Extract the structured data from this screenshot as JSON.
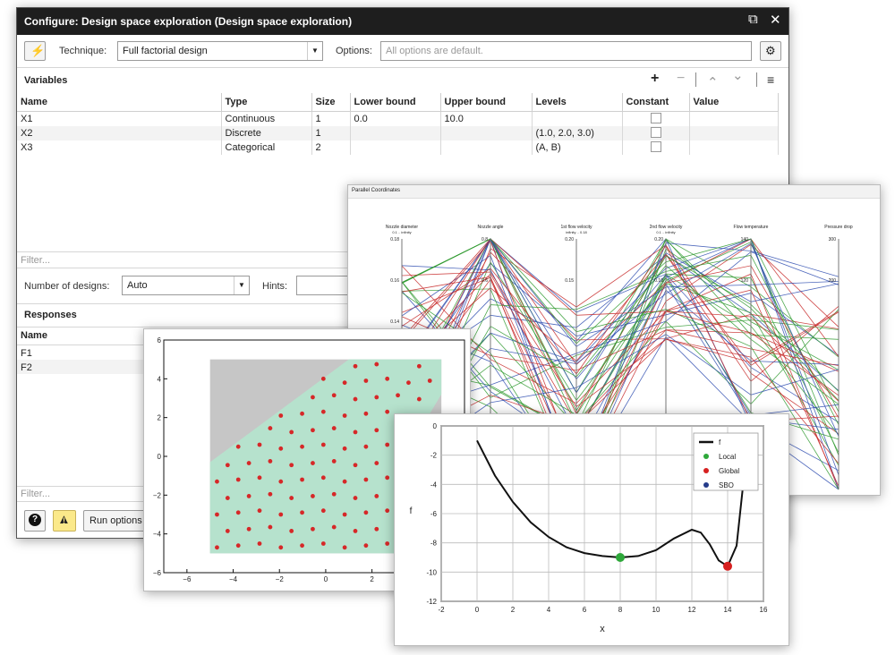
{
  "dialog": {
    "title": "Configure: Design space exploration (Design space exploration)",
    "controls": {
      "restore": "⧉",
      "close": "✕"
    },
    "technique_label": "Technique:",
    "technique_value": "Full factorial design",
    "options_label": "Options:",
    "options_placeholder": "All options are default.",
    "variables_title": "Variables",
    "toolbar": {
      "add": "+",
      "remove": "−",
      "up": "⌃",
      "down": "⌄",
      "menu": "≡"
    },
    "variables_columns": [
      "Name",
      "Type",
      "Size",
      "Lower bound",
      "Upper bound",
      "Levels",
      "Constant",
      "Value"
    ],
    "variables_rows": [
      {
        "name": "X1",
        "type": "Continuous",
        "size": "1",
        "lower": "0.0",
        "upper": "10.0",
        "levels": ""
      },
      {
        "name": "X2",
        "type": "Discrete",
        "size": "1",
        "lower": "",
        "upper": "",
        "levels": "(1.0, 2.0, 3.0)"
      },
      {
        "name": "X3",
        "type": "Categorical",
        "size": "2",
        "lower": "",
        "upper": "",
        "levels": "(A, B)"
      }
    ],
    "filter_placeholder": "Filter...",
    "number_of_designs_label": "Number of designs:",
    "number_of_designs_value": "Auto",
    "hints_label": "Hints:",
    "responses_title": "Responses",
    "responses_columns": [
      "Name"
    ],
    "responses_rows": [
      "F1",
      "F2"
    ],
    "filter2_placeholder": "Filter...",
    "help_button": "?",
    "warning_button": "!",
    "run_options_button": "Run options"
  },
  "parallel_chart": {
    "title": "Parallel Coordinates",
    "axes": [
      "Nozzle diameter",
      "Nozzle angle",
      "1st flow velocity",
      "2nd flow velocity",
      "Flow temperature",
      "Pressure drop"
    ],
    "subtitles": [
      "0.1 .. infinity",
      "",
      "infinity .. 0.18",
      "0.1 .. infinity",
      "",
      ""
    ],
    "tick_labels": [
      [
        "0.18",
        "0.16",
        "0.14"
      ],
      [
        "0.8",
        "0.6"
      ],
      [
        "0.20",
        "0.15"
      ],
      [
        "0.20",
        "0.10"
      ],
      [
        "140",
        "120"
      ],
      [
        "300",
        "200"
      ]
    ],
    "line_colors": [
      "#2f4db0",
      "#2f9a2f",
      "#c72828"
    ]
  },
  "scatter_chart": {
    "chart_data": {
      "type": "scatter",
      "xlim": [
        -7,
        6
      ],
      "ylim": [
        -6,
        6
      ],
      "xticks": [
        "−6",
        "−4",
        "−2",
        "0",
        "2",
        "4"
      ],
      "yticks": [
        "6",
        "4",
        "2",
        "0",
        "−2",
        "−4",
        "−6"
      ],
      "region_box": {
        "x": [
          -5,
          5
        ],
        "y": [
          -5,
          5
        ]
      },
      "feasible_polygon": [
        [
          -5,
          -5
        ],
        [
          4.6,
          -5
        ],
        [
          4.6,
          -2
        ],
        [
          3.8,
          -0.6
        ],
        [
          3.6,
          0.6
        ],
        [
          4.4,
          2
        ],
        [
          5,
          3.2
        ],
        [
          5,
          5
        ],
        [
          1,
          5
        ],
        [
          -5,
          -0.3
        ]
      ],
      "colors": {
        "background": "#c6c6c6",
        "feasible": "#b6e2cd",
        "point": "#d62828"
      }
    }
  },
  "line_chart": {
    "chart_data": {
      "type": "line",
      "xlabel": "x",
      "ylabel": "f",
      "xlim": [
        -2,
        16
      ],
      "ylim": [
        -12,
        0
      ],
      "xticks": [
        "-2",
        "0",
        "2",
        "4",
        "6",
        "8",
        "10",
        "12",
        "14",
        "16"
      ],
      "yticks": [
        "0",
        "-2",
        "-4",
        "-6",
        "-8",
        "-10",
        "-12"
      ],
      "series": [
        {
          "name": "f",
          "x": [
            0,
            1,
            2,
            3,
            4,
            5,
            6,
            7,
            8,
            9,
            10,
            11,
            12,
            12.5,
            13,
            13.5,
            14,
            14.5,
            15
          ],
          "y": [
            -1.0,
            -3.4,
            -5.2,
            -6.6,
            -7.6,
            -8.3,
            -8.7,
            -8.9,
            -9.0,
            -8.9,
            -8.5,
            -7.7,
            -7.1,
            -7.3,
            -8.1,
            -9.2,
            -9.6,
            -8.2,
            -2.5
          ]
        }
      ],
      "points": [
        {
          "name": "Local",
          "x": 8,
          "y": -9.0,
          "color": "#2ea83a"
        },
        {
          "name": "Global",
          "x": 14,
          "y": -9.6,
          "color": "#d62020"
        }
      ],
      "legend": [
        {
          "name": "f",
          "color": "#111111",
          "kind": "line"
        },
        {
          "name": "Local",
          "color": "#2ea83a",
          "kind": "dot"
        },
        {
          "name": "Global",
          "color": "#d62020",
          "kind": "dot"
        },
        {
          "name": "SBO",
          "color": "#243b8a",
          "kind": "dot"
        }
      ],
      "legend_position": "top-right",
      "grid": true
    }
  }
}
